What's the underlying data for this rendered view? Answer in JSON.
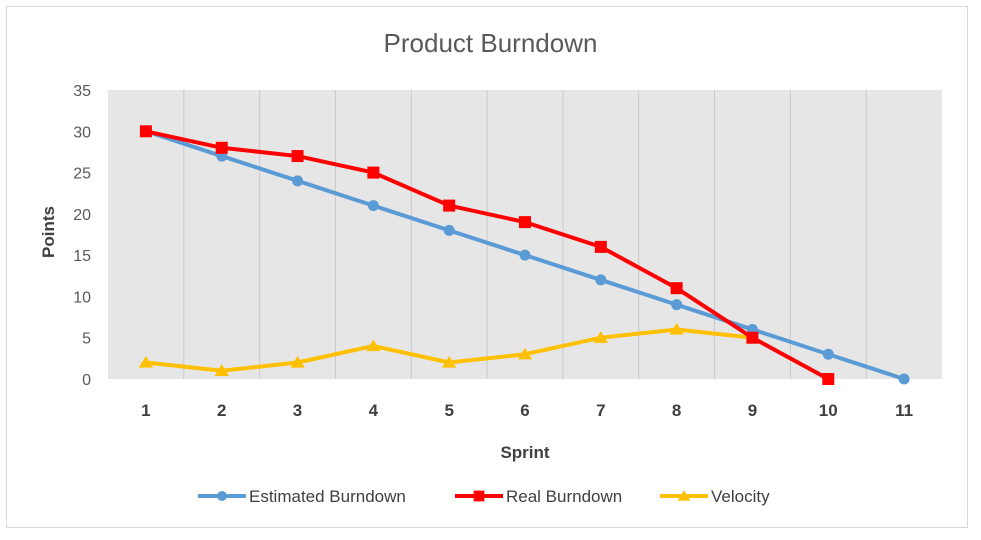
{
  "chart_data": {
    "type": "line",
    "title": "Product Burndown",
    "xlabel": "Sprint",
    "ylabel": "Points",
    "categories": [
      "1",
      "2",
      "3",
      "4",
      "5",
      "6",
      "7",
      "8",
      "9",
      "10",
      "11"
    ],
    "yticks": [
      "0",
      "5",
      "10",
      "15",
      "20",
      "25",
      "30",
      "35"
    ],
    "ylim": [
      0,
      35
    ],
    "grid": "vertical",
    "legend_position": "bottom",
    "series": [
      {
        "name": "Estimated Burndown",
        "color": "#5b9bd5",
        "marker": "circle",
        "values": [
          30,
          27,
          24,
          21,
          18,
          15,
          12,
          9,
          6,
          3,
          0
        ]
      },
      {
        "name": "Real Burndown",
        "color": "#ff0000",
        "marker": "square",
        "values": [
          30,
          28,
          27,
          25,
          21,
          19,
          16,
          11,
          5,
          0,
          null
        ]
      },
      {
        "name": "Velocity",
        "color": "#ffc000",
        "marker": "triangle",
        "values": [
          2,
          1,
          2,
          4,
          2,
          3,
          5,
          6,
          5,
          null,
          null
        ]
      }
    ]
  }
}
